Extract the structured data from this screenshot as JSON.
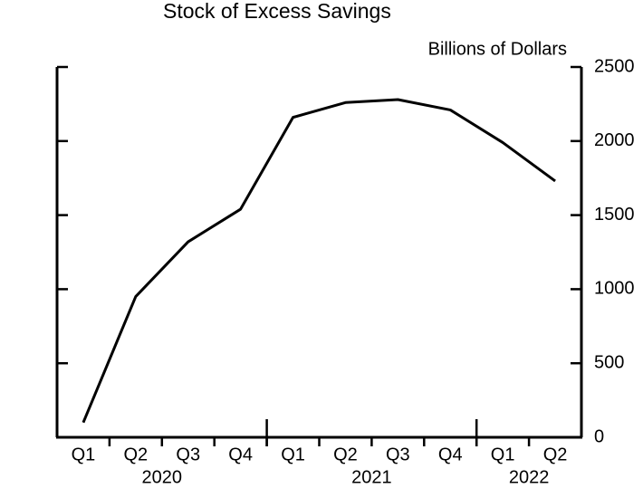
{
  "chart_data": {
    "type": "line",
    "title": "Stock of Excess Savings",
    "y_axis_label": "Billions of Dollars",
    "categories": [
      "Q1",
      "Q2",
      "Q3",
      "Q4",
      "Q1",
      "Q2",
      "Q3",
      "Q4",
      "Q1",
      "Q2"
    ],
    "groups": [
      {
        "label": "2020",
        "span": 4
      },
      {
        "label": "2021",
        "span": 4
      },
      {
        "label": "2022",
        "span": 2
      }
    ],
    "values": [
      100,
      950,
      1320,
      1540,
      2160,
      2260,
      2280,
      2210,
      1990,
      1730
    ],
    "color": "#000000",
    "ylim": [
      0,
      2500
    ],
    "yticks": [
      0,
      500,
      1000,
      1500,
      2000,
      2500
    ],
    "y_axis_side": "right"
  }
}
